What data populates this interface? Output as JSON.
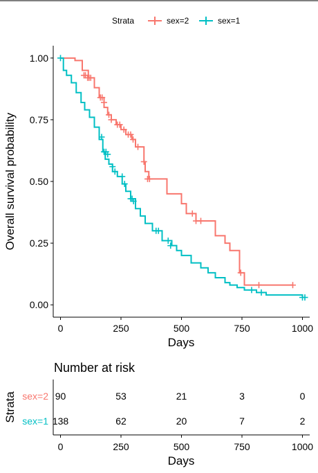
{
  "legend": {
    "title": "Strata",
    "position": "top",
    "entries": [
      {
        "label": "sex=2",
        "color": "#F8766D"
      },
      {
        "label": "sex=1",
        "color": "#00BFC4"
      }
    ]
  },
  "chart_data": [
    {
      "type": "line",
      "subtype": "step (Kaplan-Meier survival curve with censor marks)",
      "title": "",
      "xlabel": "Days",
      "ylabel": "Overall survival probability",
      "xlim": [
        -30,
        1030
      ],
      "ylim": [
        -0.05,
        1.05
      ],
      "xticks": [
        0,
        250,
        500,
        750,
        1000
      ],
      "yticks": [
        0.0,
        0.25,
        0.5,
        0.75,
        1.0
      ],
      "ytick_labels": [
        "0.00",
        "0.25",
        "0.50",
        "0.75",
        "1.00"
      ],
      "grid": false,
      "series": [
        {
          "name": "sex=2",
          "color": "#F8766D",
          "x": [
            0,
            60,
            90,
            115,
            140,
            160,
            180,
            195,
            210,
            230,
            250,
            270,
            295,
            310,
            345,
            350,
            365,
            440,
            500,
            520,
            560,
            640,
            680,
            700,
            740,
            760,
            960
          ],
          "y": [
            1.0,
            0.99,
            0.95,
            0.92,
            0.88,
            0.84,
            0.8,
            0.77,
            0.75,
            0.73,
            0.71,
            0.69,
            0.67,
            0.64,
            0.58,
            0.54,
            0.51,
            0.45,
            0.41,
            0.37,
            0.34,
            0.28,
            0.25,
            0.22,
            0.13,
            0.08,
            0.08
          ],
          "censor_x": [
            97,
            103,
            112,
            118,
            125,
            165,
            172,
            180,
            200,
            210,
            235,
            245,
            262,
            280,
            290,
            300,
            320,
            345,
            360,
            368,
            545,
            560,
            580,
            745,
            820,
            960
          ],
          "censor_y": [
            0.93,
            0.93,
            0.92,
            0.92,
            0.92,
            0.84,
            0.84,
            0.82,
            0.77,
            0.75,
            0.73,
            0.73,
            0.71,
            0.69,
            0.69,
            0.67,
            0.64,
            0.58,
            0.51,
            0.51,
            0.37,
            0.34,
            0.34,
            0.13,
            0.08,
            0.08
          ]
        },
        {
          "name": "sex=1",
          "color": "#00BFC4",
          "x": [
            0,
            12,
            25,
            45,
            65,
            85,
            100,
            120,
            140,
            160,
            175,
            185,
            200,
            215,
            235,
            255,
            270,
            290,
            310,
            330,
            350,
            380,
            420,
            460,
            480,
            500,
            540,
            580,
            610,
            640,
            680,
            700,
            730,
            760,
            810,
            850,
            880,
            1000
          ],
          "y": [
            1.0,
            0.95,
            0.93,
            0.9,
            0.86,
            0.82,
            0.79,
            0.76,
            0.72,
            0.67,
            0.62,
            0.59,
            0.57,
            0.54,
            0.52,
            0.49,
            0.46,
            0.43,
            0.39,
            0.36,
            0.33,
            0.3,
            0.26,
            0.24,
            0.22,
            0.2,
            0.17,
            0.15,
            0.13,
            0.11,
            0.09,
            0.08,
            0.07,
            0.06,
            0.05,
            0.04,
            0.04,
            0.03
          ],
          "censor_x": [
            0,
            170,
            180,
            188,
            195,
            215,
            225,
            255,
            265,
            290,
            296,
            302,
            395,
            405,
            445,
            455,
            790,
            830,
            1000,
            1010
          ],
          "censor_y": [
            1.0,
            0.68,
            0.62,
            0.62,
            0.61,
            0.56,
            0.54,
            0.52,
            0.49,
            0.43,
            0.43,
            0.42,
            0.3,
            0.3,
            0.26,
            0.24,
            0.06,
            0.05,
            0.03,
            0.03
          ]
        }
      ]
    },
    {
      "type": "table",
      "title": "Number at risk",
      "xlabel": "Days",
      "ylabel": "Strata",
      "xticks": [
        0,
        250,
        500,
        750,
        1000
      ],
      "rows": [
        {
          "label": "sex=2",
          "color": "#F8766D",
          "values": [
            90,
            53,
            21,
            3,
            0
          ]
        },
        {
          "label": "sex=1",
          "color": "#00BFC4",
          "values": [
            138,
            62,
            20,
            7,
            2
          ]
        }
      ]
    }
  ]
}
